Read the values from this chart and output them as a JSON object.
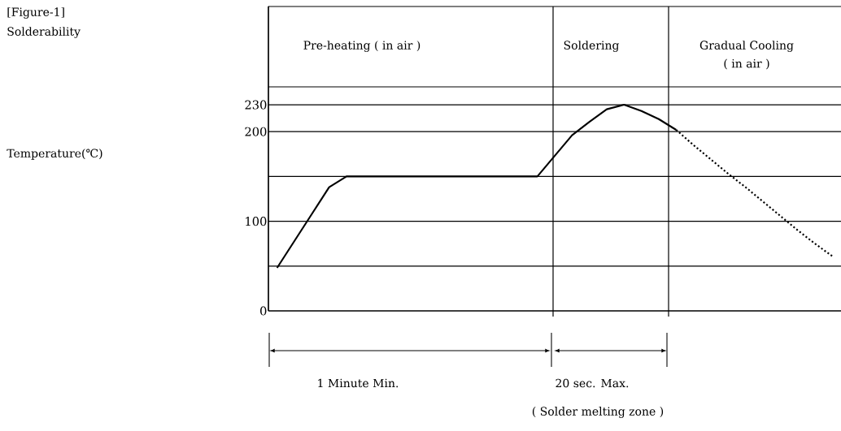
{
  "chart_data": {
    "type": "line",
    "title": "[Figure-1]",
    "subtitle": "Solderability",
    "categories": [
      null,
      null,
      null,
      null,
      null,
      null,
      null,
      null,
      null,
      null,
      null,
      null,
      null,
      null,
      null,
      null,
      null,
      null,
      null,
      null,
      null,
      null,
      null,
      null,
      null,
      null,
      null,
      null,
      null,
      null,
      null,
      null,
      null
    ],
    "series": [
      {
        "color": "#000000",
        "line_style": "solid",
        "values": [
          48,
          78,
          108,
          138,
          150,
          150,
          150,
          150,
          150,
          150,
          150,
          150,
          150,
          150,
          150,
          150,
          173,
          196,
          211,
          225,
          230,
          223,
          214,
          202,
          null,
          null,
          null,
          null,
          null,
          null,
          null,
          null,
          null
        ]
      },
      {
        "color": "#000000",
        "line_style": "dotted",
        "values": [
          null,
          null,
          null,
          null,
          null,
          null,
          null,
          null,
          null,
          null,
          null,
          null,
          null,
          null,
          null,
          null,
          null,
          null,
          null,
          null,
          null,
          null,
          null,
          202,
          185,
          169,
          153,
          138,
          122,
          106,
          90,
          75,
          61
        ]
      }
    ],
    "ylim": [
      0,
      340
    ],
    "yticks": [
      0,
      {
        "value": 50,
        "label": null
      },
      100,
      {
        "value": 150,
        "label": null
      },
      200,
      230
    ],
    "grid": "y",
    "annotations": [
      "Pre-heating ( in air )",
      "Soldering",
      "Gradual Cooling",
      "( in air )",
      "1 Minute Min.",
      "20 sec. Max.",
      "( Solder melting zone )",
      "Temperature(℃)"
    ]
  }
}
